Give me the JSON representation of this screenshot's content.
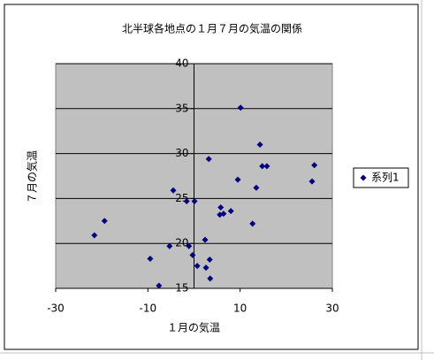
{
  "chart_data": {
    "type": "scatter",
    "title": "北半球各地点の１月７月の気温の関係",
    "x_label": "１月の気温",
    "y_label": "７月の気温",
    "xlim": [
      -30,
      30
    ],
    "xticks": [
      -30,
      -10,
      10,
      30
    ],
    "ylim": [
      15,
      40
    ],
    "yticks": [
      15,
      20,
      25,
      30,
      35,
      40
    ],
    "grid": true,
    "legend": "right",
    "series": [
      {
        "name": "系列1",
        "color": "#000080",
        "x": [
          10.1,
          14.3,
          14.8,
          15.8,
          26.1,
          25.6,
          9.5,
          13.5,
          3.2,
          -4.5,
          -1.6,
          0.1,
          5.8,
          5.6,
          6.4,
          8.0,
          12.7,
          -19.4,
          -21.6,
          2.4,
          -5.3,
          -1.1,
          -0.3,
          3.4,
          -9.5,
          0.7,
          2.6,
          3.5,
          -7.6
        ],
        "values": [
          35.1,
          31.0,
          28.6,
          28.6,
          28.7,
          26.9,
          27.1,
          26.2,
          29.4,
          25.9,
          24.7,
          24.7,
          24.0,
          23.2,
          23.3,
          23.6,
          22.2,
          22.5,
          20.9,
          20.4,
          19.7,
          19.7,
          18.7,
          18.2,
          18.3,
          17.5,
          17.3,
          16.1,
          15.3
        ]
      }
    ]
  }
}
